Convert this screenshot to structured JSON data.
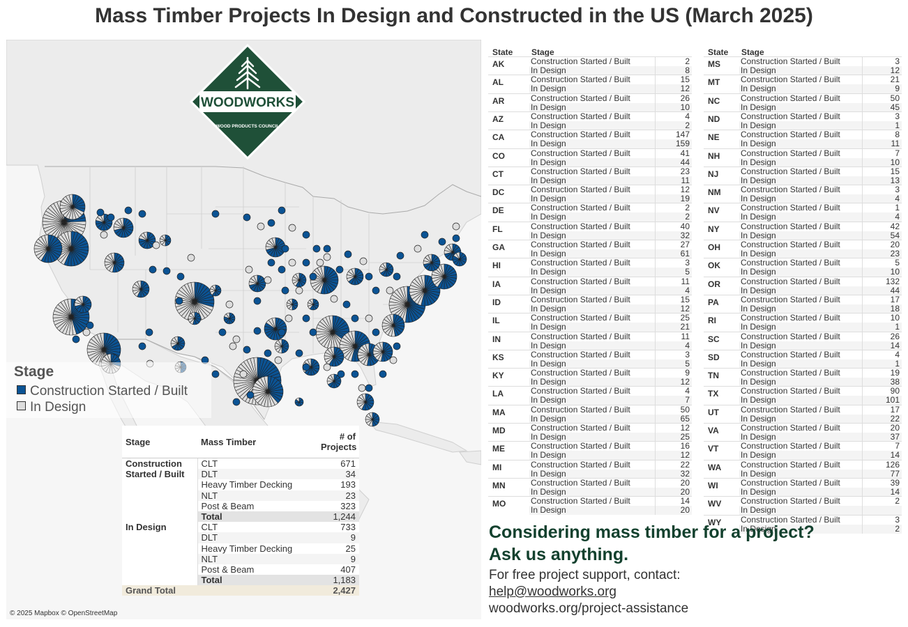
{
  "title": "Mass Timber Projects In Design and Constructed in the US (March 2025)",
  "colors": {
    "built": "#0b5394",
    "design": "#dddddd",
    "map_land": "#ececec",
    "map_water": "#f6f6f6",
    "brand": "#1f5038"
  },
  "logo": {
    "name": "WOODWORKS",
    "subtitle": "WOOD PRODUCTS COUNCIL"
  },
  "legend": {
    "title": "Stage",
    "items": [
      {
        "label": "Construction Started / Built",
        "color": "#0b5394"
      },
      {
        "label": "In Design",
        "color": "#dddddd"
      }
    ]
  },
  "attribution": "© 2025 Mapbox © OpenStreetMap",
  "summary_table": {
    "headers": [
      "Stage",
      "Mass Timber",
      "# of Projects"
    ],
    "groups": [
      {
        "stage": "Construction Started / Built",
        "rows": [
          [
            "CLT",
            "671"
          ],
          [
            "DLT",
            "34"
          ],
          [
            "Heavy Timber Decking",
            "193"
          ],
          [
            "NLT",
            "23"
          ],
          [
            "Post & Beam",
            "323"
          ]
        ],
        "total_label": "Total",
        "total": "1,244"
      },
      {
        "stage": "In Design",
        "rows": [
          [
            "CLT",
            "733"
          ],
          [
            "DLT",
            "9"
          ],
          [
            "Heavy Timber Decking",
            "25"
          ],
          [
            "NLT",
            "9"
          ],
          [
            "Post & Beam",
            "407"
          ]
        ],
        "total_label": "Total",
        "total": "1,183"
      }
    ],
    "grand_total_label": "Grand Total",
    "grand_total": "2,427"
  },
  "state_table": {
    "headers": [
      "State",
      "Stage"
    ],
    "stage_labels": [
      "Construction Started / Built",
      "In Design"
    ],
    "left": [
      [
        "AK",
        "2",
        "8"
      ],
      [
        "AL",
        "15",
        "12"
      ],
      [
        "AR",
        "26",
        "10"
      ],
      [
        "AZ",
        "4",
        "2"
      ],
      [
        "CA",
        "147",
        "159"
      ],
      [
        "CO",
        "41",
        "44"
      ],
      [
        "CT",
        "23",
        "11"
      ],
      [
        "DC",
        "12",
        "19"
      ],
      [
        "DE",
        "2",
        "2"
      ],
      [
        "FL",
        "40",
        "32"
      ],
      [
        "GA",
        "27",
        "61"
      ],
      [
        "HI",
        "3",
        "5"
      ],
      [
        "IA",
        "11",
        "4"
      ],
      [
        "ID",
        "15",
        "12"
      ],
      [
        "IL",
        "25",
        "21"
      ],
      [
        "IN",
        "11",
        "4"
      ],
      [
        "KS",
        "3",
        "5"
      ],
      [
        "KY",
        "9",
        "12"
      ],
      [
        "LA",
        "4",
        "7"
      ],
      [
        "MA",
        "50",
        "65"
      ],
      [
        "MD",
        "12",
        "25"
      ],
      [
        "ME",
        "16",
        "12"
      ],
      [
        "MI",
        "22",
        "32"
      ],
      [
        "MN",
        "20",
        "20"
      ],
      [
        "MO",
        "14",
        "20"
      ]
    ],
    "right": [
      [
        "MS",
        "3",
        "12"
      ],
      [
        "MT",
        "21",
        "9"
      ],
      [
        "NC",
        "50",
        "45"
      ],
      [
        "ND",
        "3",
        "1"
      ],
      [
        "NE",
        "8",
        "11"
      ],
      [
        "NH",
        "7",
        "10"
      ],
      [
        "NJ",
        "15",
        "13"
      ],
      [
        "NM",
        "3",
        "4"
      ],
      [
        "NV",
        "1",
        "4"
      ],
      [
        "NY",
        "42",
        "54"
      ],
      [
        "OH",
        "20",
        "23"
      ],
      [
        "OK",
        "5",
        "10"
      ],
      [
        "OR",
        "132",
        "44"
      ],
      [
        "PA",
        "17",
        "18"
      ],
      [
        "RI",
        "10",
        "1"
      ],
      [
        "SC",
        "26",
        "14"
      ],
      [
        "SD",
        "4",
        "1"
      ],
      [
        "TN",
        "19",
        "38"
      ],
      [
        "TX",
        "90",
        "101"
      ],
      [
        "UT",
        "17",
        "22"
      ],
      [
        "VA",
        "20",
        "37"
      ],
      [
        "VT",
        "7",
        "14"
      ],
      [
        "WA",
        "126",
        "77"
      ],
      [
        "WI",
        "39",
        "14"
      ],
      [
        "WV",
        "2",
        ""
      ],
      [
        "WY",
        "3",
        "2"
      ]
    ]
  },
  "cta": {
    "heading1": "Considering mass timber for a project?",
    "heading2": "Ask us anything.",
    "line1": "For free project support, contact:",
    "email": "help@woodworks.org",
    "url": "woodworks.org/project-assistance"
  }
}
